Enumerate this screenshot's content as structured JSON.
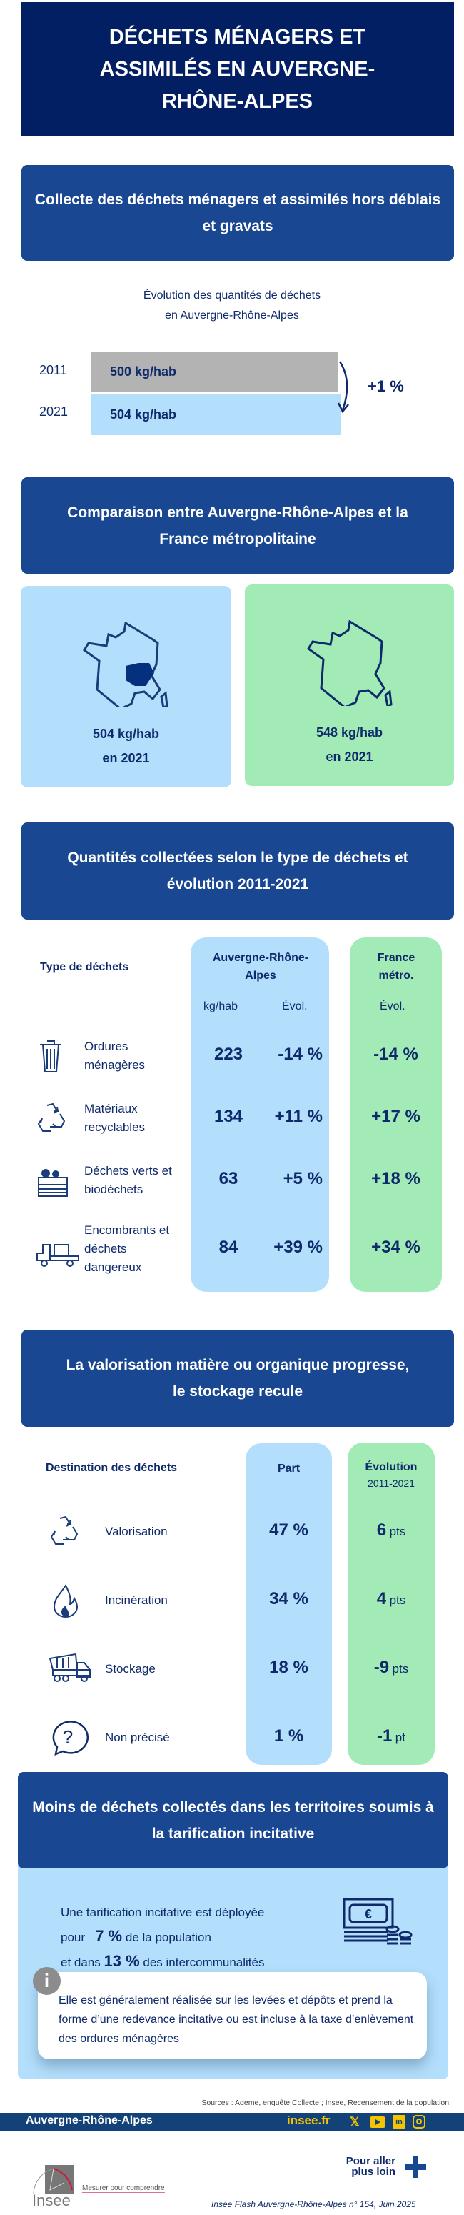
{
  "title": "DÉCHETS MÉNAGERS ET ASSIMILÉS EN AUVERGNE-RHÔNE-ALPES",
  "s1": {
    "header": "Collecte des déchets ménagers et assimilés hors déblais et gravats",
    "caption_l1": "Évolution des quantités de déchets",
    "caption_l2": "en Auvergne-Rhône-Alpes",
    "rows": [
      {
        "year": "2011",
        "value": "500 kg/hab",
        "amount": 500
      },
      {
        "year": "2021",
        "value": "504 kg/hab",
        "amount": 504
      }
    ],
    "change": "+1 %"
  },
  "s2": {
    "header": "Comparaison entre Auvergne-Rhône-Alpes et la France métropolitaine",
    "left": {
      "value": "504 kg/hab",
      "year": "en 2021"
    },
    "right": {
      "value": "548 kg/hab",
      "year": "en 2021"
    }
  },
  "s3": {
    "header": "Quantités collectées selon le type de déchets et évolution 2011-2021",
    "col_type": "Type de déchets",
    "col_ara": "Auvergne-Rhône-Alpes",
    "col_fr": "France métro.",
    "sub_kg": "kg/hab",
    "sub_evol": "Évol.",
    "sub_evol_fr": "Évol.",
    "rows": [
      {
        "label": "Ordures ménagères",
        "kg": "223",
        "evol": "-14 %",
        "fr": "-14 %",
        "icon": "trash-icon"
      },
      {
        "label": "Matériaux recyclables",
        "kg": "134",
        "evol": "+11 %",
        "fr": "+17 %",
        "icon": "recycle-icon"
      },
      {
        "label": "Déchets verts et biodéchets",
        "kg": "63",
        "evol": "+5 %",
        "fr": "+18 %",
        "icon": "compost-crate-icon"
      },
      {
        "label": "Encombrants et déchets dangereux",
        "kg": "84",
        "evol": "+39 %",
        "fr": "+34 %",
        "icon": "truck-furniture-icon"
      }
    ]
  },
  "s4": {
    "header": "La valorisation matière ou organique progresse, le stockage recule",
    "col_dest": "Destination des déchets",
    "col_part": "Part",
    "col_evol": "Évolution",
    "col_evol_sub": "2011-2021",
    "rows": [
      {
        "label": "Valorisation",
        "part": "47 %",
        "evol": "6",
        "unit": "pts",
        "icon": "recycle-icon"
      },
      {
        "label": "Incinération",
        "part": "34 %",
        "evol": "4",
        "unit": "pts",
        "icon": "flame-icon"
      },
      {
        "label": "Stockage",
        "part": "18 %",
        "evol": "-9",
        "unit": "pts",
        "icon": "dump-truck-icon"
      },
      {
        "label": "Non précisé",
        "part": "1 %",
        "evol": "-1",
        "unit": "pt",
        "icon": "question-bubble-icon"
      }
    ]
  },
  "s5": {
    "header": "Moins de déchets collectés dans les territoires soumis à la tarification incitative",
    "l1": "Une tarification incitative est déployée",
    "l2a": "pour",
    "l2b": "7 %",
    "l2c": "de la population",
    "l3a": "et dans",
    "l3b": "13 %",
    "l3c": "des intercommunalités",
    "info": "Elle est généralement réalisée sur les levées et dépôts et prend la forme d’une redevance incitative ou est incluse à la taxe d’enlèvement des ordures ménagères",
    "info_icon": "i"
  },
  "footer": {
    "sources": "Sources : Ademe, enquête Collecte ; Insee, Recensement de la population.",
    "region": "Auvergne-Rhône-Alpes",
    "site": "insee.fr",
    "more": "Pour aller plus loin",
    "logo": "Insee",
    "tagline": "Mesurer pour comprendre",
    "publication": "Insee Flash Auvergne-Rhône-Alpes n° 154,  Juin 2025"
  },
  "colors": {
    "navy": "#021f63",
    "header": "#1a4792",
    "lightblue": "#b3dffc",
    "green": "#a3ebb6",
    "gray": "#b3b3b3",
    "yellow": "#f5c400"
  }
}
